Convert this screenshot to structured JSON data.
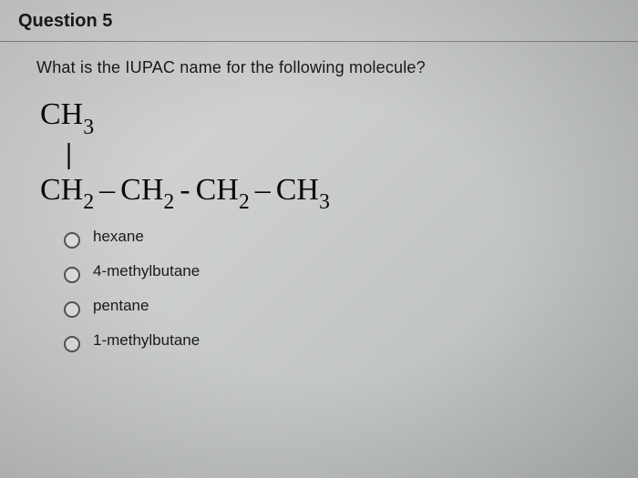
{
  "header": {
    "title": "Question 5"
  },
  "prompt": "What is the IUPAC name for the following molecule?",
  "molecule": {
    "top": "CH",
    "top_sub": "3",
    "vbar": "|",
    "chain": [
      {
        "base": "CH",
        "sub": "2"
      },
      {
        "base": "CH",
        "sub": "2"
      },
      {
        "base": "CH",
        "sub": "2"
      },
      {
        "base": "CH",
        "sub": "3"
      }
    ],
    "dashes": [
      "–",
      "-",
      "–"
    ]
  },
  "options": [
    {
      "label": "hexane"
    },
    {
      "label": "4-methylbutane"
    },
    {
      "label": "pentane"
    },
    {
      "label": "1-methylbutane"
    }
  ],
  "styling": {
    "background_gradient": [
      "#d8dad9",
      "#c8cbca",
      "#b8bcbb"
    ],
    "text_color": "#1a1a1a",
    "border_color": "#888",
    "radio_border": "#555",
    "title_fontsize": 20,
    "prompt_fontsize": 18,
    "molecule_fontsize": 34,
    "option_fontsize": 17
  }
}
